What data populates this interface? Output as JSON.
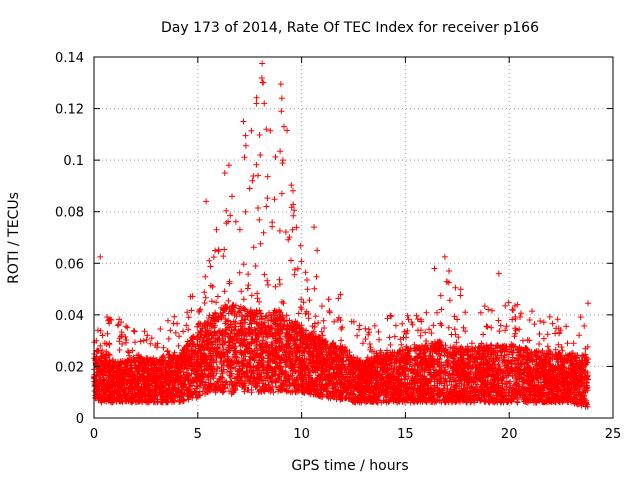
{
  "chart_data": {
    "type": "scatter",
    "title": "Day 173 of 2014, Rate Of TEC Index for receiver p166",
    "xlabel": "GPS time / hours",
    "ylabel": "ROTI / TECUs",
    "xlim": [
      0,
      25
    ],
    "ylim": [
      0,
      0.14
    ],
    "x_ticks": [
      0,
      5,
      10,
      15,
      20,
      25
    ],
    "y_ticks": [
      0,
      0.02,
      0.04,
      0.06,
      0.08,
      0.1,
      0.12,
      0.14
    ],
    "x_tick_labels": [
      "0",
      "5",
      "10",
      "15",
      "20",
      "25"
    ],
    "y_tick_labels": [
      "0",
      "0.02",
      "0.04",
      "0.06",
      "0.08",
      "0.1",
      "0.12",
      "0.14"
    ],
    "grid": true,
    "marker": "+",
    "color": "#ff0000",
    "envelope": {
      "x": [
        0,
        0.3,
        1,
        2,
        3,
        4,
        5,
        5.5,
        6,
        6.5,
        7,
        7.5,
        8,
        8.5,
        9,
        9.5,
        10,
        10.5,
        11,
        11.5,
        12,
        12.5,
        13,
        14,
        15,
        16,
        16.5,
        17,
        18,
        19,
        20,
        21,
        22,
        23,
        23.8
      ],
      "low": [
        0.008,
        0.006,
        0.006,
        0.006,
        0.006,
        0.006,
        0.008,
        0.01,
        0.01,
        0.009,
        0.01,
        0.01,
        0.01,
        0.01,
        0.01,
        0.01,
        0.01,
        0.009,
        0.008,
        0.007,
        0.007,
        0.006,
        0.006,
        0.006,
        0.006,
        0.006,
        0.006,
        0.006,
        0.006,
        0.006,
        0.006,
        0.006,
        0.006,
        0.006,
        0.004
      ],
      "mid": [
        0.018,
        0.02,
        0.016,
        0.017,
        0.017,
        0.018,
        0.024,
        0.028,
        0.03,
        0.032,
        0.031,
        0.03,
        0.03,
        0.03,
        0.03,
        0.028,
        0.026,
        0.024,
        0.022,
        0.021,
        0.02,
        0.017,
        0.016,
        0.018,
        0.019,
        0.02,
        0.021,
        0.02,
        0.019,
        0.02,
        0.02,
        0.019,
        0.018,
        0.018,
        0.017
      ],
      "high": [
        0.03,
        0.045,
        0.04,
        0.035,
        0.035,
        0.04,
        0.05,
        0.06,
        0.07,
        0.09,
        0.1,
        0.11,
        0.135,
        0.12,
        0.125,
        0.1,
        0.07,
        0.06,
        0.05,
        0.045,
        0.05,
        0.04,
        0.035,
        0.04,
        0.04,
        0.045,
        0.055,
        0.06,
        0.045,
        0.045,
        0.045,
        0.045,
        0.04,
        0.035,
        0.045
      ]
    },
    "spikes": [
      {
        "x": 0.3,
        "y": 0.0625
      },
      {
        "x": 4.65,
        "y": 0.047
      },
      {
        "x": 5.4,
        "y": 0.084
      },
      {
        "x": 5.9,
        "y": 0.073
      },
      {
        "x": 6.3,
        "y": 0.095
      },
      {
        "x": 6.5,
        "y": 0.098
      },
      {
        "x": 7.2,
        "y": 0.115
      },
      {
        "x": 7.3,
        "y": 0.1095
      },
      {
        "x": 7.5,
        "y": 0.089
      },
      {
        "x": 7.9,
        "y": 0.094
      },
      {
        "x": 8.1,
        "y": 0.1375
      },
      {
        "x": 8.15,
        "y": 0.13
      },
      {
        "x": 8.2,
        "y": 0.122
      },
      {
        "x": 8.3,
        "y": 0.082
      },
      {
        "x": 9.0,
        "y": 0.1295
      },
      {
        "x": 9.05,
        "y": 0.124
      },
      {
        "x": 9.15,
        "y": 0.113
      },
      {
        "x": 9.3,
        "y": 0.1115
      },
      {
        "x": 9.1,
        "y": 0.1
      },
      {
        "x": 9.05,
        "y": 0.087
      },
      {
        "x": 10.6,
        "y": 0.074
      },
      {
        "x": 10.75,
        "y": 0.065
      },
      {
        "x": 16.4,
        "y": 0.058
      },
      {
        "x": 16.9,
        "y": 0.0625
      },
      {
        "x": 17.1,
        "y": 0.057
      },
      {
        "x": 19.5,
        "y": 0.056
      },
      {
        "x": 23.8,
        "y": 0.0445
      }
    ]
  }
}
